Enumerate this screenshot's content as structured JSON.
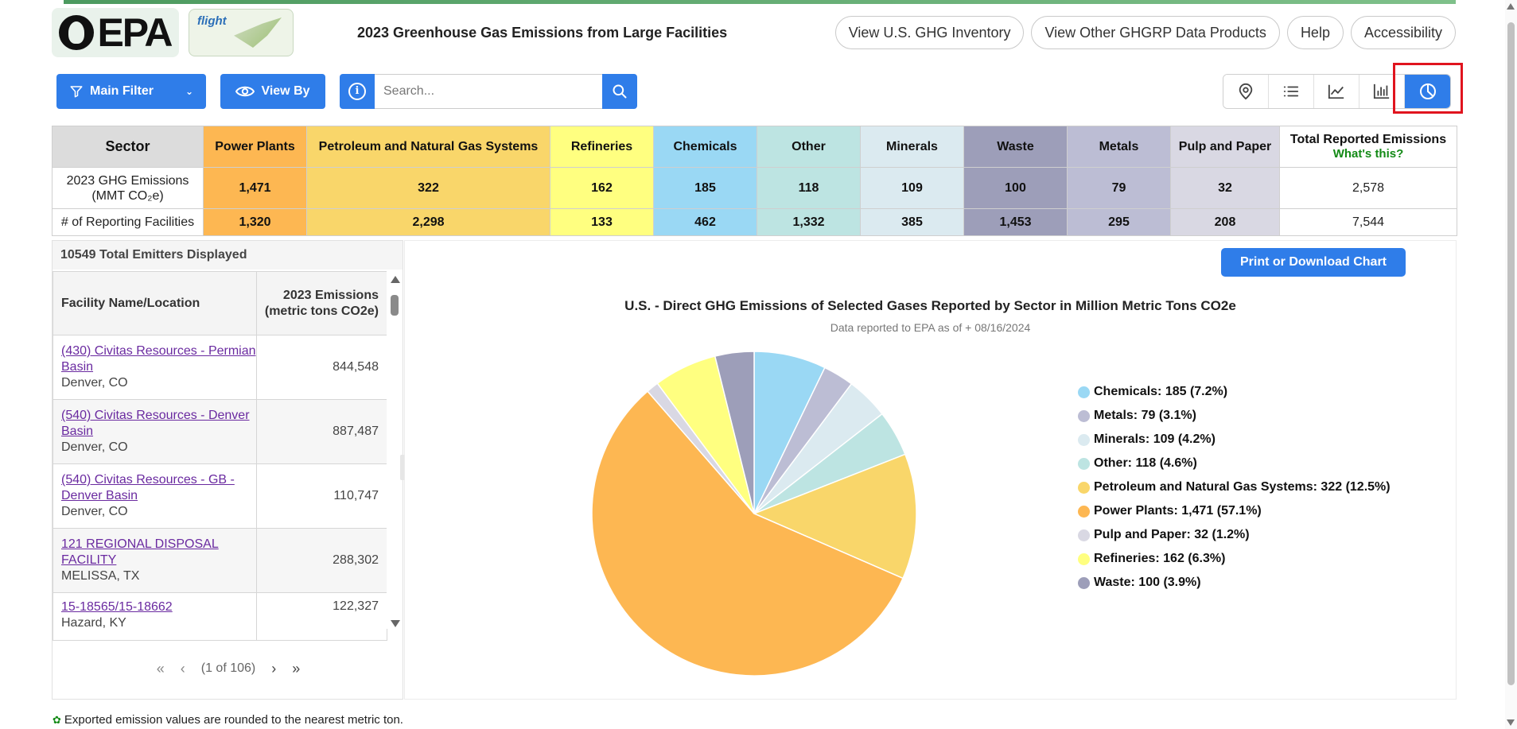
{
  "header": {
    "logo_text": "EPA",
    "flight_logo_text": "flight",
    "title": "2023 Greenhouse Gas Emissions from Large Facilities",
    "links": [
      "View U.S. GHG Inventory",
      "View Other GHGRP Data Products",
      "Help",
      "Accessibility"
    ]
  },
  "toolbar": {
    "main_filter_label": "Main Filter",
    "view_by_label": "View By",
    "search_placeholder": "Search..."
  },
  "view_switch": {
    "icons": [
      "map-pin-icon",
      "list-icon",
      "line-chart-icon",
      "bar-chart-icon",
      "pie-chart-icon"
    ],
    "active": "pie-chart-icon"
  },
  "sector_table": {
    "header_label": "Sector",
    "total_header": "Total Reported Emissions",
    "whats_this": "What's this?",
    "row1_label_a": "2023 GHG Emissions",
    "row1_label_b": "(MMT CO₂e)",
    "row2_label": "# of Reporting Facilities",
    "sectors": [
      {
        "name": "Power Plants",
        "emissions": "1,471",
        "facilities": "1,320",
        "color": "#fdb752"
      },
      {
        "name": "Petroleum and Natural Gas Systems",
        "emissions": "322",
        "facilities": "2,298",
        "color": "#f9d66a"
      },
      {
        "name": "Refineries",
        "emissions": "162",
        "facilities": "133",
        "color": "#ffff80"
      },
      {
        "name": "Chemicals",
        "emissions": "185",
        "facilities": "462",
        "color": "#9ad8f4"
      },
      {
        "name": "Other",
        "emissions": "118",
        "facilities": "1,332",
        "color": "#bde4e2"
      },
      {
        "name": "Minerals",
        "emissions": "109",
        "facilities": "385",
        "color": "#dbeaf0"
      },
      {
        "name": "Waste",
        "emissions": "100",
        "facilities": "1,453",
        "color": "#9d9eb9"
      },
      {
        "name": "Metals",
        "emissions": "79",
        "facilities": "295",
        "color": "#bcbdd4"
      },
      {
        "name": "Pulp and Paper",
        "emissions": "32",
        "facilities": "208",
        "color": "#d9d8e3"
      }
    ],
    "total_emissions": "2,578",
    "total_facilities": "7,544"
  },
  "facility_list": {
    "count_text": "10549 Total Emitters Displayed",
    "col_name": "Facility Name/Location",
    "col_emissions": "2023 Emissions (metric tons CO2e)",
    "rows": [
      {
        "name": "(430) Civitas Resources - Permian Basin",
        "location": "Denver, CO",
        "emissions": "844,548"
      },
      {
        "name": "(540) Civitas Resources - Denver Basin",
        "location": "Denver, CO",
        "emissions": "887,487"
      },
      {
        "name": "(540) Civitas Resources - GB - Denver Basin",
        "location": "Denver, CO",
        "emissions": "110,747"
      },
      {
        "name": "121 REGIONAL DISPOSAL FACILITY",
        "location": "MELISSA, TX",
        "emissions": "288,302"
      },
      {
        "name": "15-18565/15-18662",
        "location": "Hazard, KY",
        "emissions": "122,327"
      }
    ],
    "pager": {
      "first": "«",
      "prev": "‹",
      "status": "(1 of 106)",
      "next": "›",
      "last": "»"
    }
  },
  "chart": {
    "print_label": "Print or Download Chart"
  },
  "chart_data": {
    "type": "pie",
    "title": "U.S. - Direct GHG Emissions of Selected Gases Reported by Sector in Million Metric Tons CO2e",
    "subtitle": "Data reported to EPA as of + 08/16/2024",
    "legend_position": "right",
    "slices": [
      {
        "label": "Chemicals",
        "value": 185,
        "percent": 7.2,
        "color": "#9ad8f4",
        "legend": "Chemicals: 185 (7.2%)"
      },
      {
        "label": "Metals",
        "value": 79,
        "percent": 3.1,
        "color": "#bcbdd4",
        "legend": "Metals: 79 (3.1%)"
      },
      {
        "label": "Minerals",
        "value": 109,
        "percent": 4.2,
        "color": "#dbeaf0",
        "legend": "Minerals: 109 (4.2%)"
      },
      {
        "label": "Other",
        "value": 118,
        "percent": 4.6,
        "color": "#bde4e2",
        "legend": "Other: 118 (4.6%)"
      },
      {
        "label": "Petroleum and Natural Gas Systems",
        "value": 322,
        "percent": 12.5,
        "color": "#f9d66a",
        "legend": "Petroleum and Natural Gas Systems: 322 (12.5%)"
      },
      {
        "label": "Power Plants",
        "value": 1471,
        "percent": 57.1,
        "color": "#fdb752",
        "legend": "Power Plants: 1,471 (57.1%)"
      },
      {
        "label": "Pulp and Paper",
        "value": 32,
        "percent": 1.2,
        "color": "#d9d8e3",
        "legend": "Pulp and Paper: 32 (1.2%)"
      },
      {
        "label": "Refineries",
        "value": 162,
        "percent": 6.3,
        "color": "#ffff80",
        "legend": "Refineries: 162 (6.3%)"
      },
      {
        "label": "Waste",
        "value": 100,
        "percent": 3.9,
        "color": "#9d9eb9",
        "legend": "Waste: 100 (3.9%)"
      }
    ]
  },
  "footnote": "Exported emission values are rounded to the nearest metric ton."
}
